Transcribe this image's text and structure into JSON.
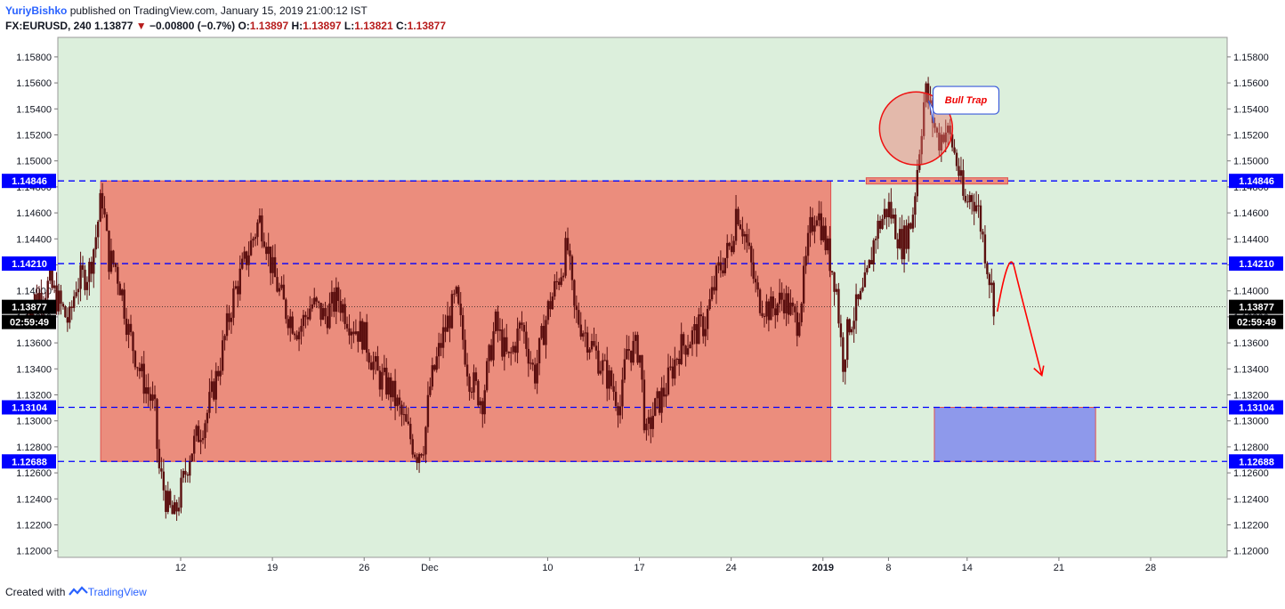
{
  "header": {
    "author": "YuriyBishko",
    "published_text": "published on TradingView.com, January 15, 2019 21:00:12 IST",
    "symbol": "FX:EURUSD, 240",
    "last": "1.13877",
    "change": "−0.00800 (−0.7%)",
    "ohlc": {
      "o_label": "O:",
      "o": "1.13897",
      "h_label": "H:",
      "h": "1.13897",
      "l_label": "L:",
      "l": "1.13821",
      "c_label": "C:",
      "c": "1.13877"
    }
  },
  "footer": {
    "created_with": "Created with",
    "brand": "TradingView"
  },
  "colors": {
    "background": "#dcefdc",
    "zone_red": "#ec8878",
    "zone_blue": "#8a95ec",
    "level_line": "#0000ff",
    "candle": "#5b0f0f",
    "arrow": "#ff0000",
    "price_tag": "#0000ff"
  },
  "chart_data": {
    "type": "candlestick",
    "title": "",
    "ylim": [
      1.1195,
      1.1595
    ],
    "y_ticks": [
      "1.12000",
      "1.12200",
      "1.12400",
      "1.12600",
      "1.12800",
      "1.13000",
      "1.13200",
      "1.13400",
      "1.13600",
      "1.13800",
      "1.14000",
      "1.14200",
      "1.14400",
      "1.14600",
      "1.14800",
      "1.15000",
      "1.15200",
      "1.15400",
      "1.15600",
      "1.15800"
    ],
    "x_ticks": [
      {
        "label": "12",
        "day": 12
      },
      {
        "label": "19",
        "day": 19
      },
      {
        "label": "26",
        "day": 26
      },
      {
        "label": "Dec",
        "day": 31
      },
      {
        "label": "10",
        "day": 40
      },
      {
        "label": "17",
        "day": 47
      },
      {
        "label": "24",
        "day": 54
      },
      {
        "label": "2019",
        "day": 61,
        "bold": true
      },
      {
        "label": "8",
        "day": 66
      },
      {
        "label": "14",
        "day": 72
      },
      {
        "label": "21",
        "day": 79
      },
      {
        "label": "28",
        "day": 86
      }
    ],
    "x_note": "day = days since 1 Nov 2018",
    "levels": [
      {
        "label": "1.14846",
        "value": 1.14846
      },
      {
        "label": "1.14210",
        "value": 1.1421
      },
      {
        "label": "1.13104",
        "value": 1.13104
      },
      {
        "label": "1.12688",
        "value": 1.12688
      }
    ],
    "current_price": {
      "label": "1.13877",
      "value": 1.13877,
      "countdown": "02:59:49"
    },
    "zones": [
      {
        "name": "range-zone",
        "day_from": 5.9,
        "day_to": 61.6,
        "y_from": 1.12688,
        "y_to": 1.14846
      },
      {
        "name": "target-zone",
        "day_from": 69.5,
        "day_to": 81.8,
        "y_from": 1.12688,
        "y_to": 1.13104
      },
      {
        "name": "breakout-zone",
        "day_from": 64.3,
        "day_to": 75.1,
        "y_from": 1.14822,
        "y_to": 1.1487
      }
    ],
    "annotations": [
      {
        "name": "bull-trap-label",
        "text": "Bull Trap",
        "day": 69.4,
        "y": 1.1547
      },
      {
        "name": "bull-trap-circle",
        "day": 68.1,
        "y": 1.1525
      }
    ],
    "path_points": [
      [
        0,
        1.1385
      ],
      [
        1,
        1.1395
      ],
      [
        2,
        1.1405
      ],
      [
        3,
        1.1385
      ],
      [
        3.5,
        1.1375
      ],
      [
        4,
        1.1405
      ],
      [
        5,
        1.1415
      ],
      [
        5.5,
        1.144
      ],
      [
        6,
        1.1475
      ],
      [
        6.5,
        1.1425
      ],
      [
        7,
        1.142
      ],
      [
        7.5,
        1.14
      ],
      [
        8,
        1.137
      ],
      [
        9,
        1.1335
      ],
      [
        10,
        1.131
      ],
      [
        10.3,
        1.1265
      ],
      [
        11,
        1.1235
      ],
      [
        11.5,
        1.1225
      ],
      [
        12,
        1.1245
      ],
      [
        12.7,
        1.1275
      ],
      [
        14,
        1.1305
      ],
      [
        15,
        1.1345
      ],
      [
        16,
        1.1395
      ],
      [
        17,
        1.1425
      ],
      [
        18,
        1.1455
      ],
      [
        18.4,
        1.1445
      ],
      [
        19,
        1.1415
      ],
      [
        20,
        1.1385
      ],
      [
        21,
        1.137
      ],
      [
        22,
        1.139
      ],
      [
        23,
        1.138
      ],
      [
        24,
        1.1395
      ],
      [
        25,
        1.1375
      ],
      [
        26,
        1.1365
      ],
      [
        27,
        1.1335
      ],
      [
        28,
        1.1325
      ],
      [
        29,
        1.13
      ],
      [
        30,
        1.1275
      ],
      [
        30.6,
        1.1285
      ],
      [
        31,
        1.1325
      ],
      [
        32,
        1.1365
      ],
      [
        33,
        1.1395
      ],
      [
        34,
        1.1335
      ],
      [
        35,
        1.1315
      ],
      [
        36,
        1.1375
      ],
      [
        37,
        1.1345
      ],
      [
        38,
        1.1375
      ],
      [
        39,
        1.1335
      ],
      [
        40,
        1.1385
      ],
      [
        41,
        1.1415
      ],
      [
        41.5,
        1.1435
      ],
      [
        42,
        1.1385
      ],
      [
        43,
        1.1365
      ],
      [
        44,
        1.1345
      ],
      [
        45,
        1.1325
      ],
      [
        45.6,
        1.131
      ],
      [
        46,
        1.1355
      ],
      [
        47,
        1.1355
      ],
      [
        47.5,
        1.1285
      ],
      [
        48,
        1.1305
      ],
      [
        49,
        1.1325
      ],
      [
        50,
        1.1355
      ],
      [
        51,
        1.1365
      ],
      [
        52,
        1.1375
      ],
      [
        53,
        1.1415
      ],
      [
        54,
        1.1435
      ],
      [
        54.4,
        1.1465
      ],
      [
        55,
        1.1445
      ],
      [
        56,
        1.1395
      ],
      [
        57,
        1.1385
      ],
      [
        58,
        1.1395
      ],
      [
        59,
        1.1375
      ],
      [
        59.5,
        1.1405
      ],
      [
        60,
        1.1445
      ],
      [
        60.5,
        1.1465
      ],
      [
        61,
        1.1445
      ],
      [
        61.5,
        1.1425
      ],
      [
        62,
        1.1405
      ],
      [
        62.5,
        1.1345
      ],
      [
        63,
        1.1375
      ],
      [
        64,
        1.1395
      ],
      [
        64.5,
        1.1415
      ],
      [
        65,
        1.1445
      ],
      [
        66,
        1.1465
      ],
      [
        67,
        1.1435
      ],
      [
        67.8,
        1.1455
      ],
      [
        68.3,
        1.1505
      ],
      [
        68.8,
        1.1555
      ],
      [
        69.3,
        1.1535
      ],
      [
        69.8,
        1.1515
      ],
      [
        70.3,
        1.1525
      ],
      [
        70.8,
        1.1515
      ],
      [
        71.3,
        1.1495
      ],
      [
        71.8,
        1.1465
      ],
      [
        72.3,
        1.1475
      ],
      [
        72.8,
        1.1465
      ],
      [
        73.3,
        1.1435
      ],
      [
        73.8,
        1.1405
      ],
      [
        74.1,
        1.1388
      ]
    ]
  }
}
